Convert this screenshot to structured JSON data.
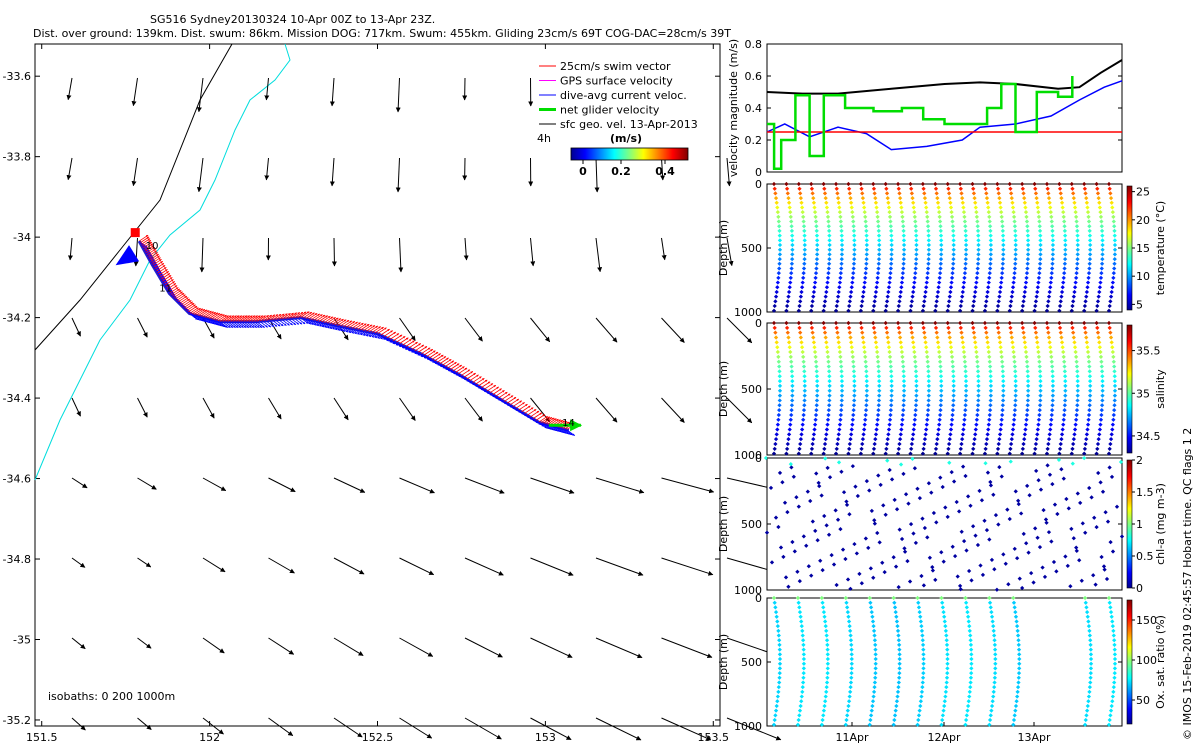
{
  "title_lines": [
    "SG516 Sydney20130324 10-Apr 00Z to 13-Apr 23Z.",
    "Dist. over ground: 139km. Dist. swum: 86km. Mission DOG: 717km. Swum: 455km. Gliding 23cm/s 69T COG-DAC=28cm/s 39T"
  ],
  "footer_credit": "© IMOS 15-Feb-2019 02:45:57 Hobart time. QC flags 1 2",
  "map_panel": {
    "x_ticks": [
      "151.5",
      "152",
      "152.5",
      "153",
      "153.5"
    ],
    "y_ticks": [
      "-33.6",
      "-33.8",
      "-34",
      "-34.2",
      "-34.4",
      "-34.6",
      "-34.8",
      "-35",
      "-35.2"
    ],
    "legend_items": [
      {
        "label": "25cm/s swim vector",
        "color": "#ff0000"
      },
      {
        "label": "GPS surface velocity",
        "color": "#ff00ff"
      },
      {
        "label": "dive-avg current veloc.",
        "color": "#0000ff"
      },
      {
        "label": "net glider velocity",
        "color": "#00dd00"
      },
      {
        "label": "sfc geo. vel. 13-Apr-2013",
        "color": "#000000"
      }
    ],
    "colorbar_label_left": "4h",
    "colorbar_title": "(m/s)",
    "colorbar_ticks": [
      "0",
      "0.2",
      "0.4"
    ],
    "track_labels": [
      "10",
      "11",
      "14"
    ],
    "isobaths_text": "isobaths: 0   200  1000m",
    "track_points": [
      [
        151.79,
        -34.01
      ],
      [
        151.83,
        -34.07
      ],
      [
        151.88,
        -34.14
      ],
      [
        151.94,
        -34.19
      ],
      [
        152.03,
        -34.21
      ],
      [
        152.14,
        -34.21
      ],
      [
        152.27,
        -34.2
      ],
      [
        152.38,
        -34.22
      ],
      [
        152.5,
        -34.24
      ],
      [
        152.63,
        -34.29
      ],
      [
        152.74,
        -34.34
      ],
      [
        152.86,
        -34.4
      ],
      [
        152.98,
        -34.46
      ],
      [
        153.07,
        -34.48
      ]
    ]
  },
  "chart_data": [
    {
      "type": "line",
      "ylabel": "velocity magnitude (m/s)",
      "ylim": [
        0,
        0.8
      ],
      "y_ticks": [
        "0",
        "0.2",
        "0.4",
        "0.6",
        "0.8"
      ],
      "x_range_days": "10-Apr to 13-Apr",
      "series": [
        {
          "color": "#000000",
          "x_frac": [
            0.0,
            0.1,
            0.2,
            0.35,
            0.5,
            0.6,
            0.7,
            0.82,
            0.88,
            0.94,
            1.0
          ],
          "values": [
            0.5,
            0.49,
            0.49,
            0.52,
            0.55,
            0.56,
            0.55,
            0.52,
            0.53,
            0.62,
            0.7
          ]
        },
        {
          "color": "#0000ff",
          "x_frac": [
            0.0,
            0.05,
            0.12,
            0.2,
            0.28,
            0.35,
            0.45,
            0.55,
            0.6,
            0.7,
            0.8,
            0.88,
            0.95,
            1.0
          ],
          "values": [
            0.25,
            0.3,
            0.22,
            0.28,
            0.24,
            0.14,
            0.16,
            0.2,
            0.28,
            0.3,
            0.35,
            0.45,
            0.53,
            0.57
          ]
        },
        {
          "color": "#ff0000",
          "x_frac": [
            0.0,
            1.0
          ],
          "values": [
            0.25,
            0.25
          ]
        },
        {
          "color": "#00dd00",
          "x_frac": [
            0.0,
            0.02,
            0.04,
            0.08,
            0.12,
            0.16,
            0.22,
            0.3,
            0.38,
            0.44,
            0.5,
            0.56,
            0.62,
            0.66,
            0.7,
            0.76,
            0.82,
            0.86
          ],
          "values": [
            0.3,
            0.02,
            0.2,
            0.48,
            0.1,
            0.48,
            0.4,
            0.38,
            0.4,
            0.33,
            0.3,
            0.3,
            0.4,
            0.55,
            0.25,
            0.5,
            0.47,
            0.6
          ]
        }
      ]
    },
    {
      "type": "heatmap",
      "variable": "temperature (°C)",
      "ylabel": "Depth (m)",
      "y_ticks": [
        "0",
        "500",
        "1000"
      ],
      "colorbar_ticks": [
        "5",
        "10",
        "15",
        "20",
        "25"
      ],
      "clim": [
        4,
        26
      ]
    },
    {
      "type": "heatmap",
      "variable": "salinity",
      "ylabel": "Depth (m)",
      "y_ticks": [
        "0",
        "500",
        "1000"
      ],
      "colorbar_ticks": [
        "34.5",
        "35",
        "35.5"
      ],
      "clim": [
        34.3,
        35.8
      ]
    },
    {
      "type": "heatmap",
      "variable": "chl-a (mg m-3)",
      "ylabel": "Depth (m)",
      "y_ticks": [
        "0",
        "500",
        "1000"
      ],
      "colorbar_ticks": [
        "0",
        "0.5",
        "1",
        "1.5",
        "2"
      ],
      "clim": [
        0,
        2
      ]
    },
    {
      "type": "heatmap",
      "variable": "Ox. sat. ratio (%)",
      "ylabel": "Depth (m)",
      "y_ticks": [
        "0",
        "500",
        "1000"
      ],
      "colorbar_ticks": [
        "50",
        "100",
        "150"
      ],
      "x_ticks": [
        "11Apr",
        "12Apr",
        "13Apr"
      ],
      "clim": [
        20,
        175
      ]
    }
  ]
}
